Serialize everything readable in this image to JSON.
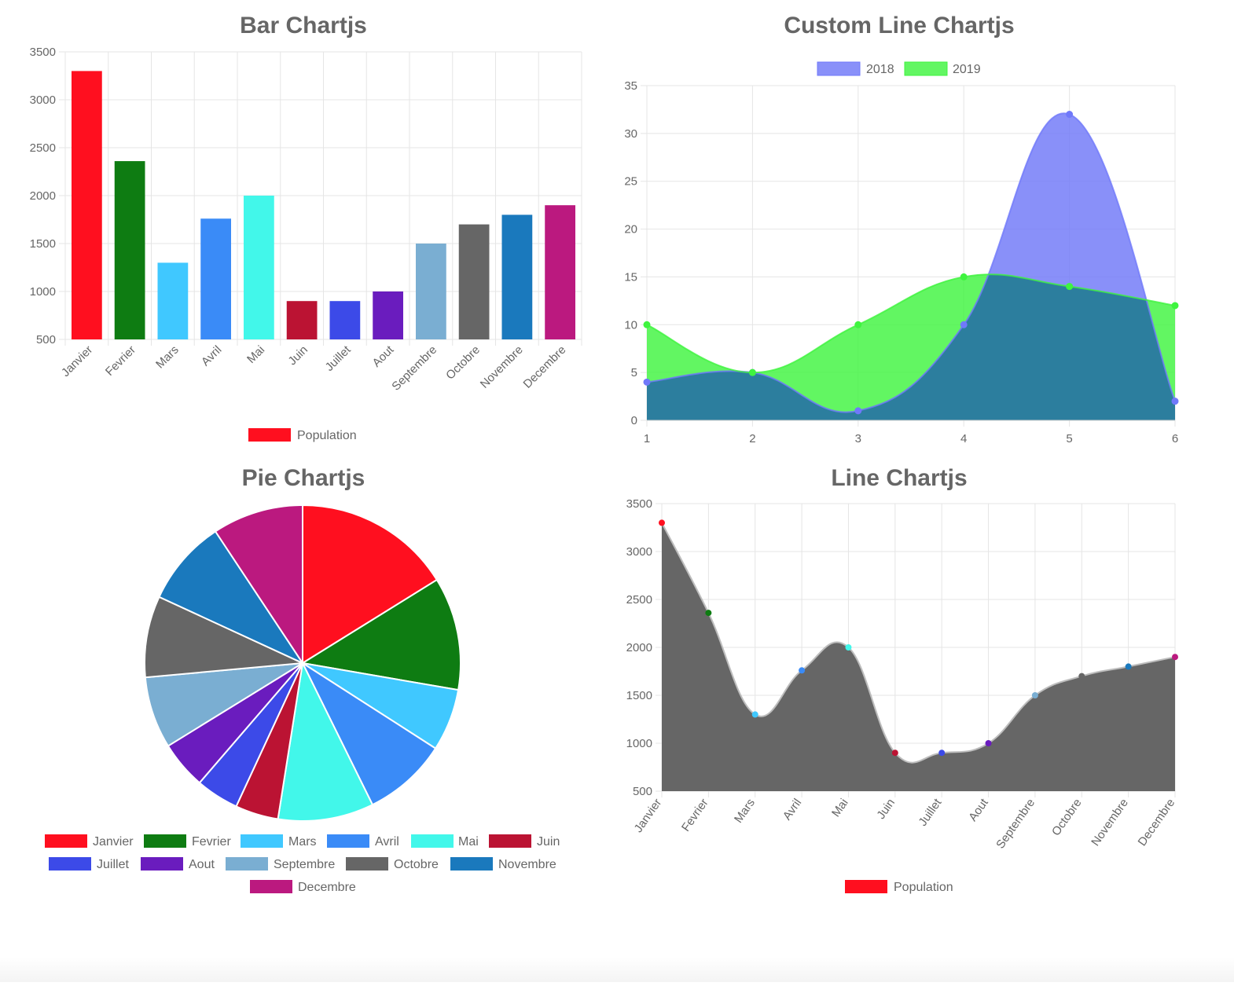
{
  "colors": {
    "text": "#666666",
    "grid": "#e5e5e5",
    "area_fill": "#666666"
  },
  "chart_data": [
    {
      "id": "bar",
      "type": "bar",
      "title": "Bar Chartjs",
      "categories": [
        "Janvier",
        "Fevrier",
        "Mars",
        "Avril",
        "Mai",
        "Juin",
        "Juillet",
        "Aout",
        "Septembre",
        "Octobre",
        "Novembre",
        "Decembre"
      ],
      "series": [
        {
          "name": "Population",
          "values": [
            3300,
            2360,
            1300,
            1760,
            2000,
            900,
            900,
            1000,
            1500,
            1700,
            1800,
            1900
          ]
        }
      ],
      "colors": [
        "#ff0f1f",
        "#0e7c12",
        "#40c8ff",
        "#3a8bf7",
        "#42f7ea",
        "#bb1333",
        "#3c4ae8",
        "#6a1cbe",
        "#7aaed2",
        "#666666",
        "#1a79bd",
        "#bb197f"
      ],
      "legend_color": "#ff0f1f",
      "ylim": [
        500,
        3500
      ],
      "yticks": [
        500,
        1000,
        1500,
        2000,
        2500,
        3000,
        3500
      ],
      "grid": true,
      "legend": "bottom"
    },
    {
      "id": "custom-line",
      "type": "area",
      "title": "Custom Line Chartjs",
      "x": [
        1,
        2,
        3,
        4,
        5,
        6
      ],
      "series": [
        {
          "name": "2018",
          "values": [
            4,
            5,
            1,
            10,
            32,
            2
          ],
          "color": "#7079fa",
          "fill": "#6f78f8",
          "opacity": 0.82
        },
        {
          "name": "2019",
          "values": [
            10,
            5,
            10,
            15,
            14,
            12
          ],
          "color": "#3ff43f",
          "fill": "#3ff43f",
          "opacity": 0.82
        }
      ],
      "overlap_color": "#2c7e9e",
      "ylim": [
        0,
        35
      ],
      "yticks": [
        0,
        5,
        10,
        15,
        20,
        25,
        30,
        35
      ],
      "grid": true,
      "legend": "top"
    },
    {
      "id": "pie",
      "type": "pie",
      "title": "Pie Chartjs",
      "categories": [
        "Janvier",
        "Fevrier",
        "Mars",
        "Avril",
        "Mai",
        "Juin",
        "Juillet",
        "Aout",
        "Septembre",
        "Octobre",
        "Novembre",
        "Decembre"
      ],
      "values": [
        3300,
        2360,
        1300,
        1760,
        2000,
        900,
        900,
        1000,
        1500,
        1700,
        1800,
        1900
      ],
      "colors": [
        "#ff0f1f",
        "#0e7c12",
        "#40c8ff",
        "#3a8bf7",
        "#42f7ea",
        "#bb1333",
        "#3c4ae8",
        "#6a1cbe",
        "#7aaed2",
        "#666666",
        "#1a79bd",
        "#bb197f"
      ],
      "legend": "bottom"
    },
    {
      "id": "line",
      "type": "area",
      "title": "Line Chartjs",
      "categories": [
        "Janvier",
        "Fevrier",
        "Mars",
        "Avril",
        "Mai",
        "Juin",
        "Juillet",
        "Aout",
        "Septembre",
        "Octobre",
        "Novembre",
        "Decembre"
      ],
      "series": [
        {
          "name": "Population",
          "values": [
            3300,
            2360,
            1300,
            1760,
            2000,
            900,
            900,
            1000,
            1500,
            1700,
            1800,
            1900
          ]
        }
      ],
      "point_colors": [
        "#ff0f1f",
        "#0e7c12",
        "#40c8ff",
        "#3a8bf7",
        "#42f7ea",
        "#bb1333",
        "#3c4ae8",
        "#6a1cbe",
        "#7aaed2",
        "#666666",
        "#1a79bd",
        "#bb197f"
      ],
      "fill": "#666666",
      "legend_color": "#ff0f1f",
      "ylim": [
        500,
        3500
      ],
      "yticks": [
        500,
        1000,
        1500,
        2000,
        2500,
        3000,
        3500
      ],
      "grid": true,
      "legend": "bottom"
    }
  ]
}
